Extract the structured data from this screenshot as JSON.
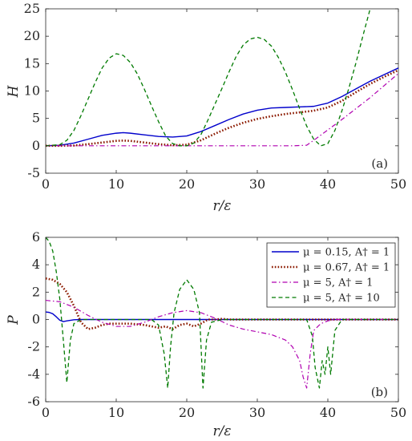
{
  "chart_data": [
    {
      "type": "line",
      "panel": "(a)",
      "xlabel": "r/ε",
      "ylabel": "H",
      "xlim": [
        0,
        50
      ],
      "ylim": [
        -5,
        25
      ],
      "xticks": [
        "0",
        "10",
        "20",
        "30",
        "40",
        "50"
      ],
      "yticks": [
        "-5",
        "0",
        "5",
        "10",
        "15",
        "20",
        "25"
      ],
      "grid": false,
      "series": [
        {
          "name": "μ = 0.15, A† = 1",
          "color": "#0000cc",
          "dash": "solid",
          "x": [
            0,
            2,
            4,
            6,
            8,
            10,
            11,
            12,
            14,
            16,
            18,
            20,
            22,
            24,
            26,
            28,
            30,
            32,
            34,
            36,
            38,
            40,
            42,
            44,
            46,
            48,
            50
          ],
          "y": [
            0,
            0.1,
            0.5,
            1.2,
            1.9,
            2.3,
            2.4,
            2.3,
            2.0,
            1.7,
            1.6,
            1.8,
            2.6,
            3.7,
            4.8,
            5.8,
            6.5,
            6.9,
            7.0,
            7.1,
            7.2,
            7.8,
            9.0,
            10.4,
            11.8,
            13.0,
            14.2
          ]
        },
        {
          "name": "μ = 0.67, A† = 1",
          "color": "#8b1a00",
          "dash": "dotted",
          "x": [
            0,
            2,
            4,
            6,
            8,
            10,
            11,
            12,
            14,
            16,
            18,
            20,
            22,
            24,
            26,
            28,
            30,
            32,
            34,
            36,
            38,
            40,
            42,
            44,
            46,
            48,
            50
          ],
          "y": [
            0,
            0,
            0.05,
            0.3,
            0.6,
            0.9,
            0.95,
            0.9,
            0.6,
            0.3,
            0.1,
            0.2,
            1.0,
            2.2,
            3.3,
            4.2,
            4.9,
            5.4,
            5.8,
            6.1,
            6.4,
            7.0,
            8.2,
            9.8,
            11.3,
            12.6,
            13.8
          ]
        },
        {
          "name": "μ = 5, A† = 1",
          "color": "#b000b0",
          "dash": "dashdot",
          "x": [
            0,
            5,
            10,
            15,
            20,
            25,
            30,
            35,
            37,
            38,
            40,
            42,
            44,
            46,
            48,
            50
          ],
          "y": [
            0,
            0,
            0,
            0,
            0,
            0,
            0,
            0,
            0.1,
            1.0,
            2.9,
            4.8,
            6.8,
            8.8,
            11.0,
            13.2
          ]
        },
        {
          "name": "μ = 5, A† = 10",
          "color": "#007a00",
          "dash": "dashed",
          "x": [
            0,
            2,
            3,
            4,
            5,
            6,
            7,
            8,
            9,
            10,
            11,
            12,
            13,
            14,
            15,
            16,
            17,
            18,
            19,
            20,
            21,
            22,
            23,
            24,
            25,
            26,
            27,
            28,
            29,
            30,
            31,
            32,
            33,
            34,
            35,
            36,
            37,
            38,
            39,
            40,
            41,
            42,
            43,
            44,
            45,
            46
          ],
          "y": [
            0,
            0.2,
            1.0,
            2.8,
            5.5,
            8.5,
            11.5,
            14.2,
            16.0,
            16.8,
            16.5,
            15.2,
            13.1,
            10.3,
            7.3,
            4.4,
            1.8,
            0.4,
            0,
            0,
            0.5,
            2.0,
            4.7,
            7.6,
            10.5,
            13.5,
            16.3,
            18.4,
            19.5,
            19.8,
            19.4,
            18.2,
            16.1,
            13.4,
            10.2,
            6.8,
            3.6,
            1.2,
            0,
            0.4,
            2.8,
            6.4,
            10.6,
            15.2,
            20.2,
            25.0
          ]
        }
      ]
    },
    {
      "type": "line",
      "panel": "(b)",
      "xlabel": "r/ε",
      "ylabel": "P",
      "xlim": [
        0,
        50
      ],
      "ylim": [
        -6,
        6
      ],
      "xticks": [
        "0",
        "10",
        "20",
        "30",
        "40",
        "50"
      ],
      "yticks": [
        "-6",
        "-4",
        "-2",
        "0",
        "2",
        "4",
        "6"
      ],
      "grid": false,
      "legend_position": "top-right",
      "series": [
        {
          "name": "μ = 0.15, A† = 1",
          "color": "#0000cc",
          "dash": "solid",
          "x": [
            0,
            0.5,
            1,
            1.5,
            2,
            2.5,
            3,
            4,
            5,
            10,
            20,
            30,
            40,
            50
          ],
          "y": [
            0.55,
            0.52,
            0.42,
            0.2,
            -0.05,
            -0.15,
            -0.1,
            -0.02,
            0,
            0,
            0,
            0,
            0,
            0
          ]
        },
        {
          "name": "μ = 0.67, A† = 1",
          "color": "#8b1a00",
          "dash": "dotted",
          "x": [
            0,
            1,
            2,
            3,
            4,
            5,
            6,
            7,
            8,
            9,
            10,
            12,
            14,
            16,
            17,
            18,
            19,
            20,
            21,
            22,
            23,
            24,
            25,
            26,
            28,
            30,
            50
          ],
          "y": [
            3.0,
            2.9,
            2.6,
            2.0,
            1.0,
            -0.2,
            -0.7,
            -0.6,
            -0.4,
            -0.3,
            -0.3,
            -0.3,
            -0.4,
            -0.6,
            -0.5,
            -0.7,
            -0.4,
            -0.3,
            -0.5,
            -0.3,
            0,
            0,
            0.05,
            0,
            0,
            0,
            0
          ]
        },
        {
          "name": "μ = 5, A† = 1",
          "color": "#b000b0",
          "dash": "dashdot",
          "x": [
            0,
            2,
            4,
            6,
            8,
            10,
            12,
            14,
            16,
            18,
            20,
            22,
            24,
            26,
            28,
            30,
            32,
            34,
            35,
            36,
            36.5,
            37,
            37.5,
            38,
            39,
            40,
            41,
            42,
            44,
            50
          ],
          "y": [
            1.4,
            1.3,
            0.9,
            0.3,
            -0.2,
            -0.5,
            -0.5,
            -0.2,
            0.2,
            0.5,
            0.65,
            0.5,
            0.1,
            -0.4,
            -0.7,
            -0.9,
            -1.1,
            -1.5,
            -2.0,
            -3.0,
            -4.2,
            -5.0,
            -2.5,
            -0.8,
            -0.3,
            -0.1,
            0,
            0,
            0,
            0
          ]
        },
        {
          "name": "μ = 5, A† = 10",
          "color": "#007a00",
          "dash": "dashed",
          "x": [
            0,
            0.5,
            1,
            1.5,
            2,
            2.5,
            3,
            3.5,
            4,
            5,
            6,
            10,
            15,
            16,
            16.8,
            17.3,
            17.7,
            18.2,
            19,
            20,
            21,
            21.8,
            22.3,
            22.8,
            23.5,
            25,
            30,
            35,
            37,
            37.8,
            38.2,
            38.8,
            39.2,
            39.6,
            40.0,
            40.4,
            41,
            42,
            50
          ],
          "y": [
            6.0,
            5.7,
            5.0,
            3.5,
            1.5,
            -1.5,
            -4.6,
            -1.5,
            -0.3,
            0,
            0,
            0,
            0,
            -0.4,
            -2.5,
            -5.0,
            -2.0,
            0.5,
            2.2,
            2.9,
            2.2,
            0.5,
            -5.0,
            -1.5,
            -0.2,
            0,
            0,
            0,
            0,
            -1.2,
            -3.5,
            -5.0,
            -3.0,
            -4.0,
            -2.0,
            -4.0,
            -0.8,
            0,
            0
          ]
        }
      ]
    }
  ]
}
